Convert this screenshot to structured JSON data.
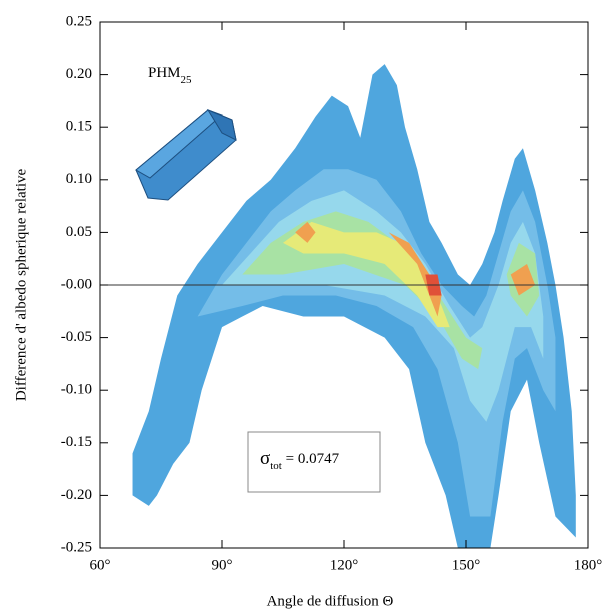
{
  "chart_data": {
    "type": "contour",
    "x_label": "Angle de diffusion Θ",
    "y_label": "Difference d' albedo spherique relative",
    "xlim": [
      60,
      180
    ],
    "ylim": [
      -0.25,
      0.25
    ],
    "xticks": [
      {
        "value": 60,
        "label": "60°"
      },
      {
        "value": 90,
        "label": "90°"
      },
      {
        "value": 120,
        "label": "120°"
      },
      {
        "value": 150,
        "label": "150°"
      },
      {
        "value": 180,
        "label": "180°"
      }
    ],
    "yticks": [
      {
        "value": 0.25,
        "label": "0.25"
      },
      {
        "value": 0.2,
        "label": "0.20"
      },
      {
        "value": 0.15,
        "label": "0.15"
      },
      {
        "value": 0.1,
        "label": "0.10"
      },
      {
        "value": 0.05,
        "label": "0.05"
      },
      {
        "value": 0,
        "label": "-0.00"
      },
      {
        "value": -0.05,
        "label": "-0.05"
      },
      {
        "value": -0.1,
        "label": "-0.10"
      },
      {
        "value": -0.15,
        "label": "-0.15"
      },
      {
        "value": -0.2,
        "label": "-0.20"
      },
      {
        "value": -0.25,
        "label": "-0.25"
      }
    ],
    "reference_line": 0,
    "annotations": {
      "particle": "PHM",
      "particle_sub": "25",
      "sigma": "σ",
      "sigma_sub": "tot",
      "sigma_value": " = 0.0747"
    },
    "series": [
      {
        "color": "#4fa6de",
        "x": [
          68,
          72,
          75,
          79,
          84,
          90,
          96,
          102,
          108,
          113,
          117,
          121,
          124,
          126,
          127,
          130,
          133,
          135,
          138,
          141,
          144,
          148,
          151,
          154,
          157,
          159,
          162,
          164,
          167,
          170,
          172,
          174,
          176,
          177,
          177,
          172,
          168,
          165,
          161,
          158,
          156,
          148,
          145,
          140,
          136,
          130,
          120,
          110,
          100,
          95,
          90,
          85,
          82,
          78,
          74,
          72,
          68
        ],
        "y": [
          -0.16,
          -0.12,
          -0.07,
          -0.01,
          0.02,
          0.05,
          0.08,
          0.1,
          0.13,
          0.16,
          0.18,
          0.17,
          0.14,
          0.18,
          0.2,
          0.21,
          0.19,
          0.15,
          0.11,
          0.06,
          0.04,
          0.01,
          0.0,
          0.02,
          0.05,
          0.08,
          0.12,
          0.13,
          0.09,
          0.04,
          0.0,
          -0.05,
          -0.12,
          -0.2,
          -0.24,
          -0.22,
          -0.15,
          -0.09,
          -0.12,
          -0.2,
          -0.25,
          -0.25,
          -0.2,
          -0.15,
          -0.08,
          -0.05,
          -0.03,
          -0.03,
          -0.02,
          -0.03,
          -0.04,
          -0.1,
          -0.15,
          -0.17,
          -0.2,
          -0.21,
          -0.2
        ]
      },
      {
        "color": "#74bde8",
        "x": [
          84,
          90,
          96,
          102,
          108,
          115,
          121,
          128,
          134,
          139,
          144,
          149,
          152,
          155,
          158,
          161,
          164,
          167,
          170,
          172,
          172,
          169,
          165,
          162,
          159,
          156,
          151,
          148,
          143,
          137,
          128,
          118,
          105,
          95
        ],
        "y": [
          -0.03,
          0.01,
          0.04,
          0.07,
          0.09,
          0.11,
          0.11,
          0.1,
          0.07,
          0.03,
          0.0,
          -0.02,
          -0.03,
          -0.01,
          0.03,
          0.07,
          0.09,
          0.06,
          0.0,
          -0.05,
          -0.12,
          -0.1,
          -0.06,
          -0.07,
          -0.13,
          -0.22,
          -0.22,
          -0.15,
          -0.08,
          -0.04,
          -0.02,
          -0.01,
          -0.01,
          -0.02
        ]
      },
      {
        "color": "#96d8ec",
        "x": [
          90,
          97,
          104,
          112,
          120,
          128,
          134,
          140,
          146,
          151,
          154,
          158,
          161,
          164,
          167,
          169,
          169,
          166,
          162,
          158,
          155,
          151,
          147,
          140,
          130,
          115,
          100
        ],
        "y": [
          0.0,
          0.03,
          0.06,
          0.08,
          0.09,
          0.07,
          0.05,
          0.02,
          -0.02,
          -0.05,
          -0.04,
          0.0,
          0.04,
          0.06,
          0.03,
          -0.03,
          -0.07,
          -0.04,
          -0.04,
          -0.1,
          -0.13,
          -0.11,
          -0.06,
          -0.03,
          -0.01,
          0.0,
          0.0
        ]
      },
      {
        "color": "#a8e2a4",
        "x": [
          95,
          102,
          110,
          118,
          126,
          133,
          140,
          145,
          150,
          154,
          153,
          149,
          143,
          135,
          120,
          105
        ],
        "y": [
          0.01,
          0.04,
          0.06,
          0.07,
          0.06,
          0.04,
          0.01,
          -0.02,
          -0.05,
          -0.06,
          -0.08,
          -0.07,
          -0.03,
          0.0,
          0.02,
          0.01
        ]
      },
      {
        "color": "#a8e2a4",
        "x": [
          160,
          163,
          167,
          168,
          165,
          161
        ],
        "y": [
          0.01,
          0.04,
          0.03,
          -0.01,
          -0.03,
          -0.01
        ]
      },
      {
        "color": "#e6ea78",
        "x": [
          105,
          112,
          120,
          128,
          134,
          140,
          144,
          146,
          143,
          138,
          130,
          120,
          110
        ],
        "y": [
          0.04,
          0.06,
          0.05,
          0.05,
          0.04,
          0.01,
          -0.02,
          -0.04,
          -0.04,
          -0.01,
          0.02,
          0.03,
          0.03
        ]
      },
      {
        "color": "#f0a050",
        "x": [
          108,
          111,
          113,
          111
        ],
        "y": [
          0.05,
          0.06,
          0.05,
          0.04
        ]
      },
      {
        "color": "#f0a050",
        "x": [
          131,
          136,
          141,
          144,
          143,
          138
        ],
        "y": [
          0.05,
          0.04,
          0.01,
          -0.01,
          -0.03,
          0.02
        ]
      },
      {
        "color": "#f0a050",
        "x": [
          161,
          165,
          167,
          163
        ],
        "y": [
          0.01,
          0.02,
          0.0,
          -0.01
        ]
      },
      {
        "color": "#e05038",
        "x": [
          140,
          143,
          144,
          141
        ],
        "y": [
          0.01,
          0.01,
          -0.01,
          -0.01
        ]
      }
    ]
  }
}
